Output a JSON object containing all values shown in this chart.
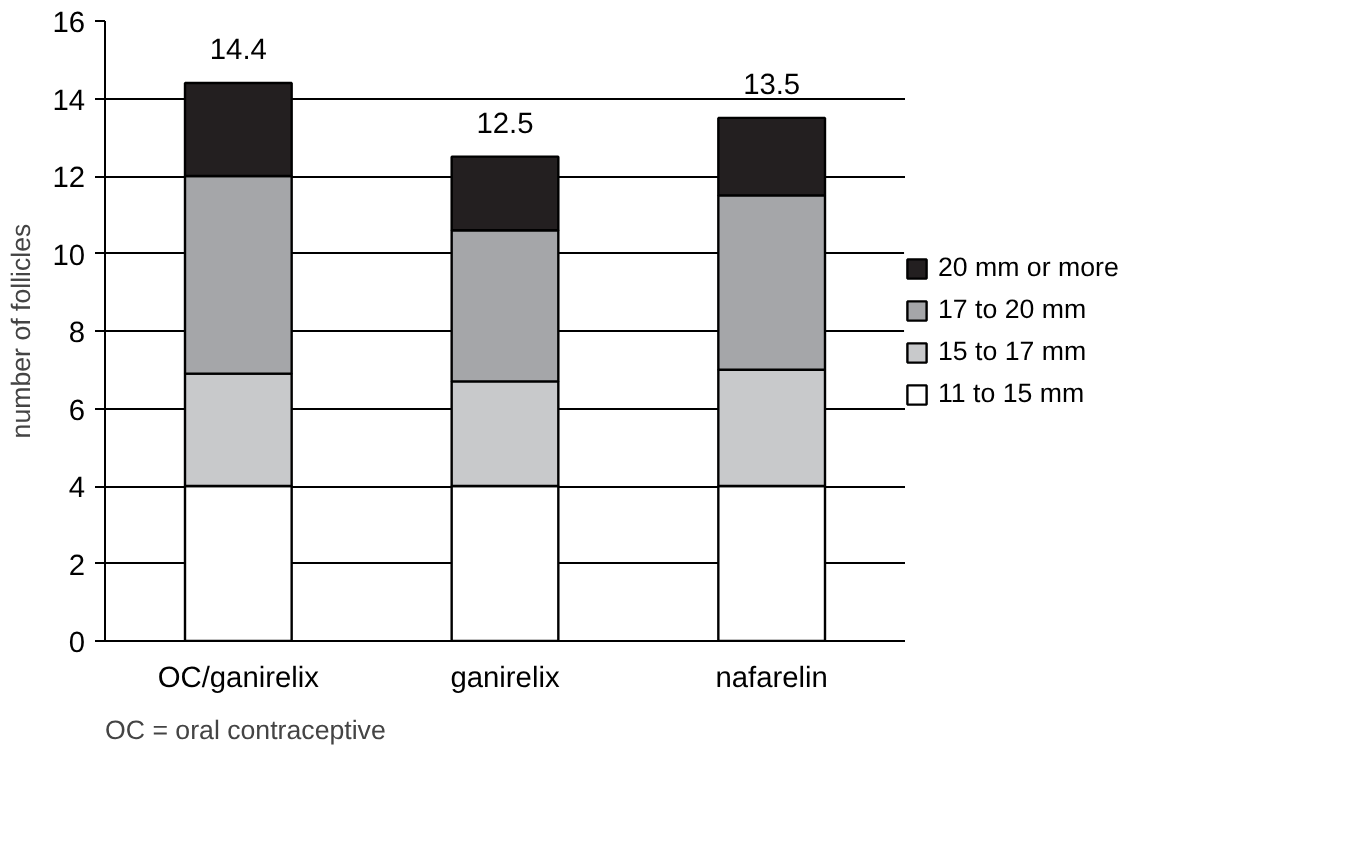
{
  "chart_data": {
    "type": "bar",
    "stacked": true,
    "ylabel": "number of follicles",
    "categories": [
      "OC/ganirelix",
      "ganirelix",
      "nafarelin"
    ],
    "series": [
      {
        "name": "11 to 15 mm",
        "color": "#ffffff",
        "values": [
          4,
          4,
          4
        ]
      },
      {
        "name": "15 to 17 mm",
        "color": "#c8c9cb",
        "values": [
          2.9,
          2.7,
          3.0
        ]
      },
      {
        "name": "17 to 20 mm",
        "color": "#a5a6a9",
        "values": [
          5.1,
          3.9,
          4.5
        ]
      },
      {
        "name": "20 mm or more",
        "color": "#231f20",
        "values": [
          2.4,
          1.9,
          2.0
        ]
      }
    ],
    "totals": [
      "14.4",
      "12.5",
      "13.5"
    ],
    "ylim": [
      0,
      16
    ],
    "yticks": [
      0,
      2,
      4,
      6,
      8,
      10,
      12,
      14,
      16
    ],
    "grid": "y",
    "legend": "right",
    "annotations": [
      "OC = oral contraceptive"
    ]
  }
}
